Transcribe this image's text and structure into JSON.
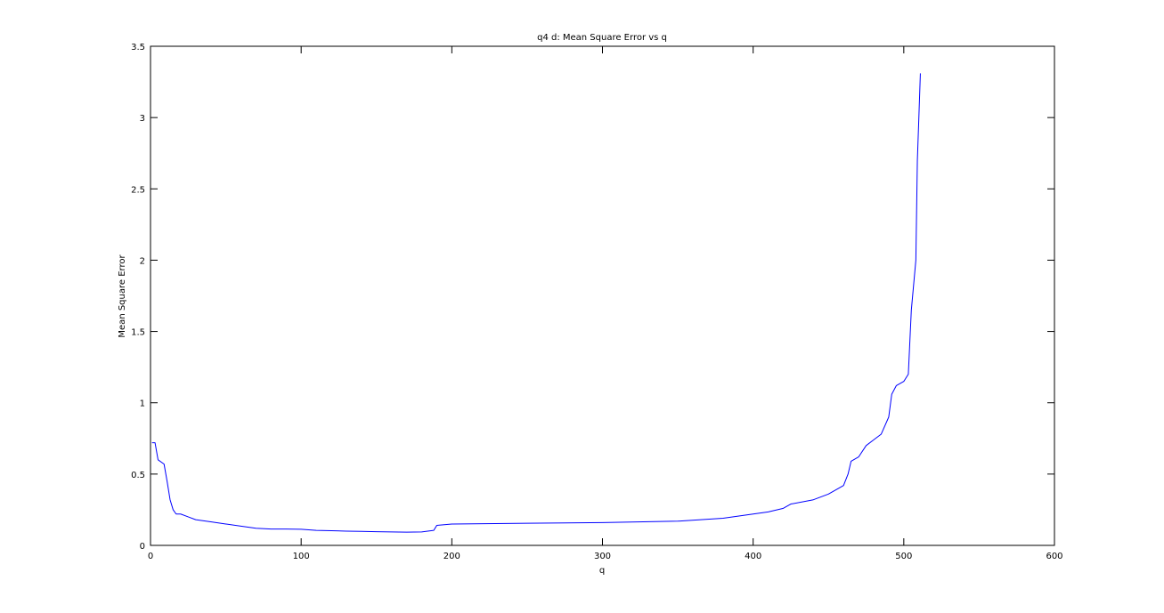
{
  "chart_data": {
    "type": "line",
    "title": "q4 d: Mean Square Error vs q",
    "xlabel": "q",
    "ylabel": "Mean Square Error",
    "xlim": [
      0,
      600
    ],
    "ylim": [
      0,
      3.5
    ],
    "grid": false,
    "x_ticks": [
      "0",
      "100",
      "200",
      "300",
      "400",
      "500",
      "600"
    ],
    "y_ticks": [
      "0",
      "0.5",
      "1",
      "1.5",
      "2",
      "2.5",
      "3",
      "3.5"
    ],
    "line_color": "#0000ff",
    "series": [
      {
        "x": [
          1,
          3,
          5,
          9,
          11,
          13,
          15,
          17,
          20,
          25,
          30,
          40,
          50,
          60,
          70,
          80,
          90,
          100,
          110,
          120,
          130,
          140,
          150,
          160,
          170,
          180,
          188,
          190,
          200,
          250,
          300,
          350,
          380,
          400,
          410,
          420,
          425,
          440,
          450,
          460,
          463,
          465,
          470,
          475,
          480,
          485,
          490,
          492,
          495,
          500,
          503,
          505,
          508,
          509,
          510,
          511
        ],
        "y": [
          0.72,
          0.72,
          0.6,
          0.57,
          0.45,
          0.32,
          0.25,
          0.22,
          0.22,
          0.2,
          0.18,
          0.165,
          0.15,
          0.135,
          0.12,
          0.115,
          0.115,
          0.113,
          0.105,
          0.103,
          0.1,
          0.098,
          0.096,
          0.094,
          0.093,
          0.094,
          0.105,
          0.14,
          0.15,
          0.155,
          0.16,
          0.17,
          0.19,
          0.22,
          0.235,
          0.26,
          0.29,
          0.32,
          0.36,
          0.42,
          0.5,
          0.59,
          0.62,
          0.7,
          0.74,
          0.78,
          0.9,
          1.06,
          1.12,
          1.15,
          1.2,
          1.65,
          2.0,
          2.7,
          3.0,
          3.31
        ]
      }
    ]
  }
}
